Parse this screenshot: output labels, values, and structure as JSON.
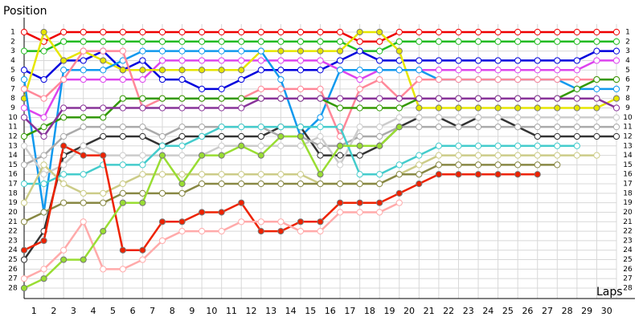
{
  "chart_data": {
    "type": "line",
    "y_label": "Position",
    "x_label": "Laps",
    "x": [
      0,
      1,
      2,
      3,
      4,
      5,
      6,
      7,
      8,
      9,
      10,
      11,
      12,
      13,
      14,
      15,
      16,
      17,
      18,
      19,
      20,
      21,
      22,
      23,
      24,
      25,
      26,
      27,
      28,
      29,
      30
    ],
    "xlim": [
      0,
      30
    ],
    "xticks": [
      1,
      2,
      3,
      4,
      5,
      6,
      7,
      8,
      9,
      10,
      11,
      12,
      13,
      14,
      15,
      16,
      17,
      18,
      19,
      20,
      21,
      22,
      23,
      24,
      25,
      26,
      27,
      28,
      29,
      30
    ],
    "ylim": [
      1,
      28
    ],
    "y_inverted": true,
    "yticks": [
      1,
      2,
      3,
      4,
      5,
      6,
      7,
      8,
      9,
      10,
      11,
      12,
      13,
      14,
      15,
      16,
      17,
      18,
      19,
      20,
      21,
      22,
      23,
      24,
      25,
      26,
      27,
      28
    ],
    "grid": true,
    "series": [
      {
        "color": "#ee0000",
        "filled": false,
        "values": [
          1,
          2,
          1,
          1,
          1,
          1,
          1,
          1,
          1,
          1,
          1,
          1,
          1,
          1,
          1,
          1,
          1,
          2,
          2,
          1,
          1,
          1,
          1,
          1,
          1,
          1,
          1,
          1,
          1,
          1,
          1
        ]
      },
      {
        "color": "#22bb22",
        "filled": false,
        "values": [
          3,
          3,
          2,
          2,
          2,
          2,
          2,
          2,
          2,
          2,
          2,
          2,
          2,
          2,
          2,
          2,
          2,
          3,
          3,
          2,
          2,
          2,
          2,
          2,
          2,
          2,
          2,
          2,
          2,
          2,
          2
        ]
      },
      {
        "color": "#0000dd",
        "filled": false,
        "values": [
          5,
          6,
          4,
          4,
          3,
          5,
          4,
          6,
          6,
          7,
          7,
          6,
          5,
          5,
          5,
          5,
          4,
          3,
          4,
          4,
          4,
          4,
          4,
          4,
          4,
          4,
          4,
          4,
          4,
          3,
          3
        ]
      },
      {
        "color": "#dd44ee",
        "filled": false,
        "values": [
          9,
          10,
          6,
          6,
          6,
          6,
          6,
          4,
          4,
          4,
          4,
          4,
          4,
          4,
          4,
          4,
          5,
          6,
          5,
          5,
          5,
          5,
          5,
          5,
          5,
          5,
          5,
          5,
          5,
          4,
          4
        ]
      },
      {
        "color": "#e6e600",
        "filled": true,
        "values": [
          8,
          1,
          4,
          3,
          4,
          5,
          5,
          5,
          5,
          5,
          5,
          5,
          3,
          3,
          3,
          3,
          3,
          1,
          1,
          3,
          9,
          9,
          9,
          9,
          9,
          9,
          9,
          9,
          9,
          9,
          8
        ]
      },
      {
        "color": "#1199ee",
        "filled": false,
        "values": [
          6,
          20,
          5,
          5,
          5,
          4,
          3,
          3,
          3,
          3,
          3,
          3,
          3,
          6,
          12,
          10,
          5,
          5,
          5,
          5,
          5,
          6,
          6,
          6,
          6,
          6,
          6,
          6,
          7,
          7,
          7
        ]
      },
      {
        "color": "#ff8899",
        "filled": false,
        "values": [
          7,
          8,
          6,
          3,
          3,
          3,
          9,
          8,
          8,
          8,
          8,
          8,
          7,
          7,
          7,
          7,
          12,
          7,
          6,
          8,
          6,
          6,
          6,
          6,
          6,
          6,
          6,
          6,
          6,
          6,
          6
        ]
      },
      {
        "color": "#339900",
        "filled": false,
        "values": [
          12,
          11,
          10,
          10,
          10,
          8,
          8,
          8,
          8,
          8,
          8,
          8,
          8,
          8,
          8,
          8,
          9,
          9,
          9,
          9,
          8,
          8,
          8,
          8,
          8,
          8,
          8,
          8,
          7,
          6,
          6
        ]
      },
      {
        "color": "#883399",
        "filled": false,
        "values": [
          10,
          12,
          9,
          9,
          9,
          9,
          9,
          9,
          9,
          9,
          9,
          9,
          8,
          8,
          8,
          8,
          8,
          8,
          8,
          8,
          8,
          8,
          8,
          8,
          8,
          8,
          8,
          8,
          8,
          8,
          9
        ]
      },
      {
        "color": "#333333",
        "filled": false,
        "values": [
          25,
          22,
          14,
          13,
          12,
          12,
          12,
          13,
          12,
          12,
          12,
          12,
          12,
          11,
          11,
          14,
          14,
          14,
          13,
          11,
          10,
          10,
          11,
          10,
          10,
          11,
          12,
          12,
          12,
          12,
          12
        ]
      },
      {
        "color": "#aaaaaa",
        "filled": false,
        "values": [
          15,
          14,
          12,
          11,
          11,
          11,
          11,
          12,
          11,
          11,
          11,
          11,
          11,
          12,
          12,
          13,
          13,
          12,
          12,
          11,
          11,
          11,
          11,
          11,
          11,
          11,
          11,
          11,
          11,
          11,
          11
        ]
      },
      {
        "color": "#cccccc",
        "filled": false,
        "values": [
          13,
          16,
          15,
          13,
          14,
          14,
          14,
          14,
          14,
          14,
          13,
          13,
          13,
          13,
          13,
          12,
          15,
          11,
          11,
          10,
          10,
          10,
          10,
          10,
          10,
          10,
          10,
          10,
          10,
          10,
          10
        ]
      },
      {
        "color": "#44cccc",
        "filled": false,
        "values": [
          17,
          17,
          16,
          16,
          15,
          15,
          15,
          13,
          13,
          12,
          11,
          11,
          11,
          11,
          11,
          11,
          11,
          16,
          16,
          15,
          14,
          13,
          13,
          13,
          13,
          13,
          13,
          13,
          13,
          null,
          null
        ]
      },
      {
        "color": "#cccc88",
        "filled": false,
        "values": [
          19,
          15,
          17,
          18,
          18,
          17,
          16,
          16,
          16,
          16,
          16,
          16,
          16,
          16,
          16,
          17,
          17,
          17,
          17,
          16,
          15,
          14,
          14,
          14,
          14,
          14,
          14,
          14,
          14,
          14,
          null
        ]
      },
      {
        "color": "#888844",
        "filled": false,
        "values": [
          21,
          20,
          19,
          19,
          19,
          18,
          18,
          18,
          18,
          17,
          17,
          17,
          17,
          17,
          17,
          17,
          17,
          17,
          17,
          16,
          16,
          15,
          15,
          15,
          15,
          15,
          15,
          15,
          null,
          null,
          null
        ]
      },
      {
        "color": "#ee2200",
        "filled": true,
        "values": [
          24,
          23,
          13,
          14,
          14,
          24,
          24,
          21,
          21,
          20,
          20,
          19,
          22,
          22,
          21,
          21,
          19,
          19,
          19,
          18,
          17,
          16,
          16,
          16,
          16,
          16,
          16,
          null,
          null,
          null,
          null
        ]
      },
      {
        "color": "#ffaaaa",
        "filled": false,
        "values": [
          27,
          26,
          24,
          21,
          26,
          26,
          25,
          23,
          22,
          22,
          22,
          21,
          21,
          21,
          22,
          22,
          20,
          20,
          20,
          19,
          null,
          null,
          null,
          null,
          null,
          null,
          null,
          null,
          null,
          null,
          null
        ]
      },
      {
        "color": "#99dd33",
        "filled": true,
        "values": [
          28,
          27,
          25,
          25,
          22,
          19,
          19,
          14,
          17,
          14,
          14,
          13,
          14,
          12,
          12,
          16,
          13,
          13,
          13,
          11,
          null,
          null,
          null,
          null,
          null,
          null,
          null,
          null,
          null,
          null,
          null
        ]
      }
    ]
  }
}
